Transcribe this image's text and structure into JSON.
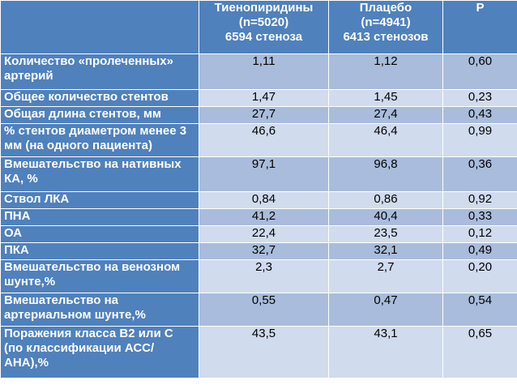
{
  "header": {
    "col0": "",
    "col1": [
      "Тиенопиридины",
      "(n=5020)",
      "6594 стеноза"
    ],
    "col2": [
      "Плацебо",
      "(n=4941)",
      "6413 стенозов"
    ],
    "col3": "P"
  },
  "rows": [
    {
      "label": "Количество «пролеченных» артерий",
      "v1": "1,11",
      "v2": "1,12",
      "p": "0,60"
    },
    {
      "label": "Общее количество стентов",
      "v1": "1,47",
      "v2": "1,45",
      "p": "0,23"
    },
    {
      "label": "Общая длина стентов, мм",
      "v1": "27,7",
      "v2": "27,4",
      "p": "0,43"
    },
    {
      "label": "% стентов диаметром менее 3 мм (на одного пациента)",
      "v1": "46,6",
      "v2": "46,4",
      "p": "0,99"
    },
    {
      "label": "Вмешательство на нативных КА, %",
      "v1": "97,1",
      "v2": "96,8",
      "p": "0,36"
    },
    {
      "label": "Ствол ЛКА",
      "v1": "0,84",
      "v2": "0,86",
      "p": "0,92",
      "sub": true
    },
    {
      "label": "ПНА",
      "v1": "41,2",
      "v2": "40,4",
      "p": "0,33",
      "sub": true
    },
    {
      "label": "ОА",
      "v1": "22,4",
      "v2": "23,5",
      "p": "0,12",
      "sub": true
    },
    {
      "label": "ПКА",
      "v1": "32,7",
      "v2": "32,1",
      "p": "0,49",
      "sub": true
    },
    {
      "label": "Вмешательство на венозном шунте,%",
      "v1": "2,3",
      "v2": "2,7",
      "p": "0,20"
    },
    {
      "label": "Вмешательство на артериальном шунте,%",
      "v1": "0,55",
      "v2": "0,47",
      "p": "0,54"
    },
    {
      "label": "Поражения класса В2 или С (по классификации АСС/АНА),%",
      "v1": "43,5",
      "v2": "43,1",
      "p": "0,65"
    }
  ]
}
